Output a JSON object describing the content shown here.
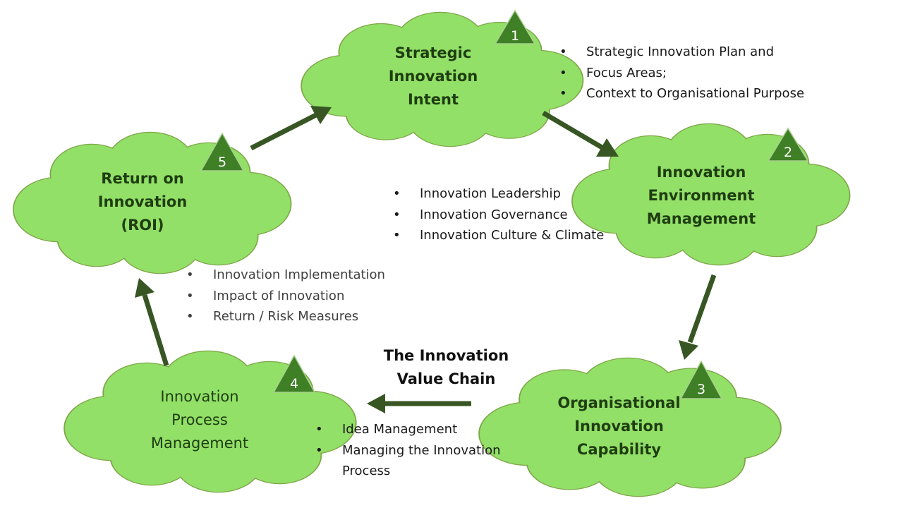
{
  "stages": [
    {
      "number": "1",
      "lines": [
        "Strategic",
        "Innovation",
        "Intent"
      ]
    },
    {
      "number": "2",
      "lines": [
        "Innovation",
        "Environment",
        "Management"
      ]
    },
    {
      "number": "3",
      "lines": [
        "Organisational",
        "Innovation",
        "Capability"
      ]
    },
    {
      "number": "4",
      "lines": [
        "Innovation",
        "Process",
        "Management"
      ]
    },
    {
      "number": "5",
      "lines": [
        "Return on",
        "Innovation",
        "(ROI)"
      ]
    }
  ],
  "bullets": {
    "strategic": [
      "Strategic Innovation Plan and",
      "Focus Areas;",
      "Context to Organisational Purpose"
    ],
    "environment": [
      "Innovation Leadership",
      "Innovation Governance",
      "Innovation Culture & Climate"
    ],
    "implementation": [
      "Innovation Implementation",
      "Impact of Innovation",
      "Return / Risk Measures"
    ],
    "process": [
      "Idea Management",
      "Managing the Innovation",
      "Process"
    ]
  },
  "center_title": [
    "The Innovation",
    "Value Chain"
  ],
  "colors": {
    "cloud_fill": "#92e067",
    "cloud_outline": "#7fa64a",
    "triangle": "#3f7f26",
    "arrow": "#375623",
    "label_text": "#1f3d12"
  }
}
